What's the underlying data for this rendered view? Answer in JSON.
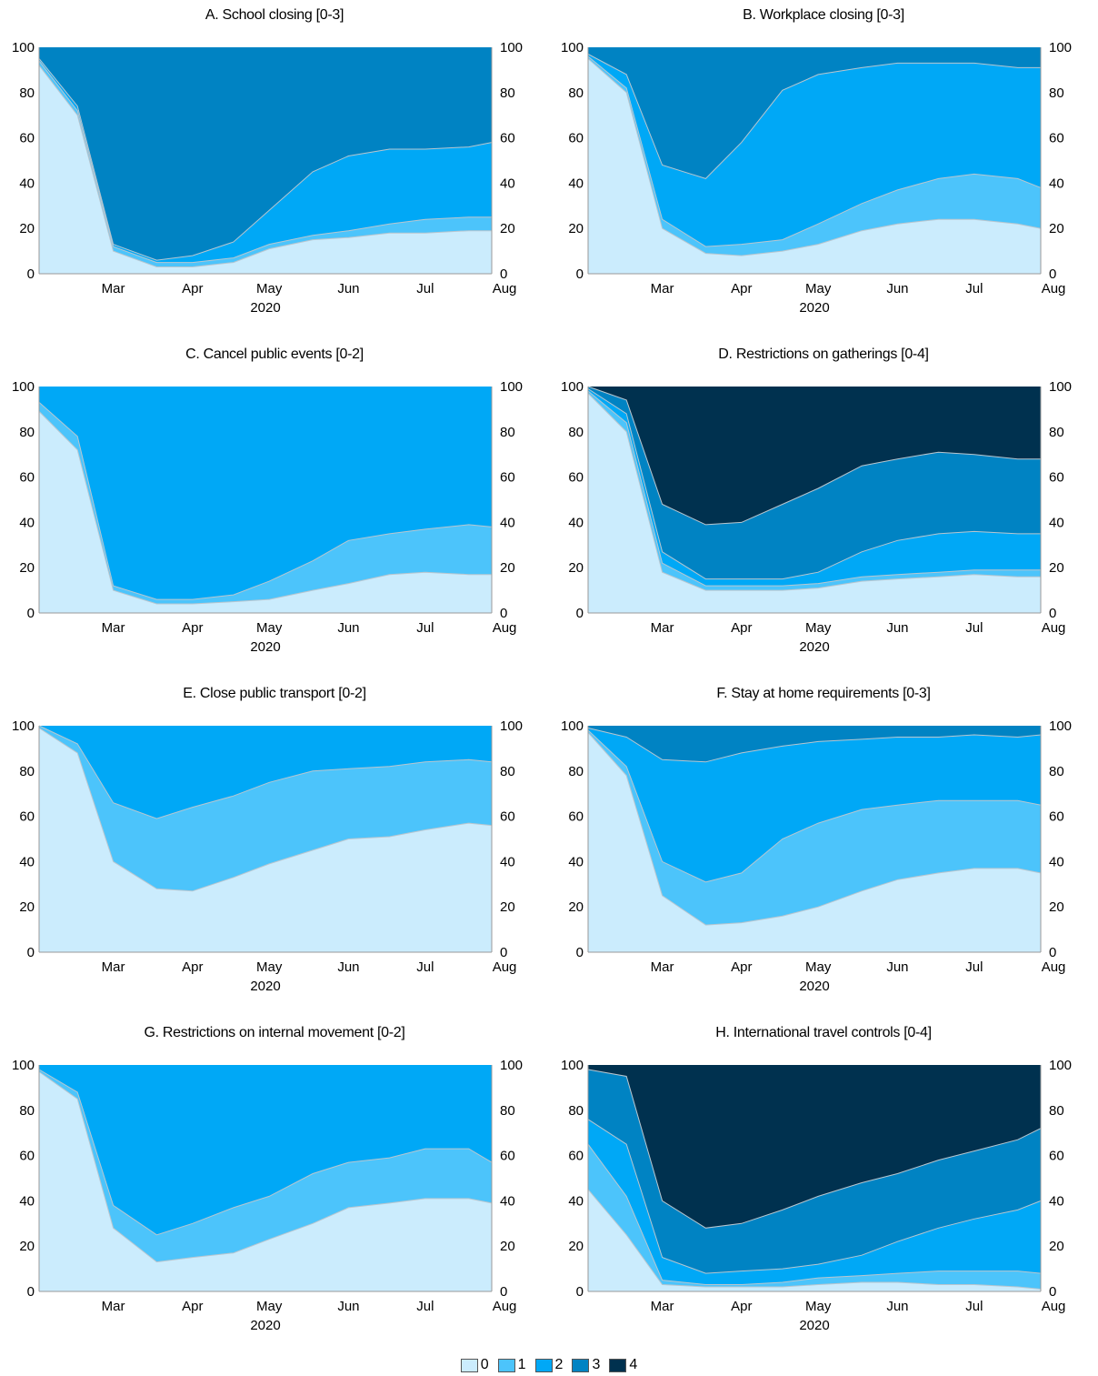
{
  "legend": {
    "items": [
      {
        "label": "0",
        "color": "#cbecfd"
      },
      {
        "label": "1",
        "color": "#4cc4fb"
      },
      {
        "label": "2",
        "color": "#00a8f6"
      },
      {
        "label": "3",
        "color": "#0083c3"
      },
      {
        "label": "4",
        "color": "#00314f"
      }
    ]
  },
  "chart_data": [
    {
      "type": "area",
      "title": "A. School closing [0-3]",
      "x": [
        "Feb 15",
        "Mar 1",
        "Mar 15",
        "Apr 1",
        "Apr 15",
        "May 1",
        "May 15",
        "Jun 1",
        "Jun 15",
        "Jul 1",
        "Jul 15",
        "Aug 1",
        "Aug 10"
      ],
      "xticks": [
        "Mar",
        "Apr",
        "May",
        "Jun",
        "Jul",
        "Aug"
      ],
      "xlabel": "2020",
      "yticks": [
        0,
        20,
        40,
        60,
        80,
        100
      ],
      "ylim": [
        0,
        100
      ],
      "series": [
        {
          "level": "0",
          "values": [
            92,
            70,
            10,
            3,
            3,
            5,
            11,
            15,
            16,
            18,
            18,
            19,
            19
          ]
        },
        {
          "level": "1",
          "values": [
            94,
            72,
            12,
            5,
            5,
            7,
            13,
            17,
            19,
            22,
            24,
            25,
            25
          ]
        },
        {
          "level": "2",
          "values": [
            95,
            74,
            13,
            6,
            8,
            14,
            28,
            45,
            52,
            55,
            55,
            56,
            58
          ]
        },
        {
          "level": "3",
          "values": [
            100,
            100,
            100,
            100,
            100,
            100,
            100,
            100,
            100,
            100,
            100,
            100,
            100
          ]
        }
      ]
    },
    {
      "type": "area",
      "title": "B. Workplace closing [0-3]",
      "x": [
        "Feb 15",
        "Mar 1",
        "Mar 15",
        "Apr 1",
        "Apr 15",
        "May 1",
        "May 15",
        "Jun 1",
        "Jun 15",
        "Jul 1",
        "Jul 15",
        "Aug 1",
        "Aug 10"
      ],
      "xticks": [
        "Mar",
        "Apr",
        "May",
        "Jun",
        "Jul",
        "Aug"
      ],
      "xlabel": "2020",
      "yticks": [
        0,
        20,
        40,
        60,
        80,
        100
      ],
      "ylim": [
        0,
        100
      ],
      "series": [
        {
          "level": "0",
          "values": [
            95,
            80,
            20,
            9,
            8,
            10,
            13,
            19,
            22,
            24,
            24,
            22,
            20
          ]
        },
        {
          "level": "1",
          "values": [
            96,
            82,
            24,
            12,
            13,
            15,
            22,
            31,
            37,
            42,
            44,
            42,
            38
          ]
        },
        {
          "level": "2",
          "values": [
            97,
            88,
            48,
            42,
            58,
            81,
            88,
            91,
            93,
            93,
            93,
            91,
            91
          ]
        },
        {
          "level": "3",
          "values": [
            100,
            100,
            100,
            100,
            100,
            100,
            100,
            100,
            100,
            100,
            100,
            100,
            100
          ]
        }
      ]
    },
    {
      "type": "area",
      "title": "C. Cancel public events [0-2]",
      "x": [
        "Feb 15",
        "Mar 1",
        "Mar 15",
        "Apr 1",
        "Apr 15",
        "May 1",
        "May 15",
        "Jun 1",
        "Jun 15",
        "Jul 1",
        "Jul 15",
        "Aug 1",
        "Aug 10"
      ],
      "xticks": [
        "Mar",
        "Apr",
        "May",
        "Jun",
        "Jul",
        "Aug"
      ],
      "xlabel": "2020",
      "yticks": [
        0,
        20,
        40,
        60,
        80,
        100
      ],
      "ylim": [
        0,
        100
      ],
      "series": [
        {
          "level": "0",
          "values": [
            89,
            72,
            10,
            4,
            4,
            5,
            6,
            10,
            13,
            17,
            18,
            17,
            17
          ]
        },
        {
          "level": "1",
          "values": [
            93,
            78,
            12,
            6,
            6,
            8,
            14,
            23,
            32,
            35,
            37,
            39,
            38
          ]
        },
        {
          "level": "2",
          "values": [
            100,
            100,
            100,
            100,
            100,
            100,
            100,
            100,
            100,
            100,
            100,
            100,
            100
          ]
        }
      ]
    },
    {
      "type": "area",
      "title": "D. Restrictions on gatherings [0-4]",
      "x": [
        "Feb 15",
        "Mar 1",
        "Mar 15",
        "Apr 1",
        "Apr 15",
        "May 1",
        "May 15",
        "Jun 1",
        "Jun 15",
        "Jul 1",
        "Jul 15",
        "Aug 1",
        "Aug 10"
      ],
      "xticks": [
        "Mar",
        "Apr",
        "May",
        "Jun",
        "Jul",
        "Aug"
      ],
      "xlabel": "2020",
      "yticks": [
        0,
        20,
        40,
        60,
        80,
        100
      ],
      "ylim": [
        0,
        100
      ],
      "series": [
        {
          "level": "0",
          "values": [
            97,
            80,
            18,
            10,
            10,
            10,
            11,
            14,
            15,
            16,
            17,
            16,
            16
          ]
        },
        {
          "level": "1",
          "values": [
            98,
            84,
            22,
            12,
            12,
            12,
            13,
            16,
            17,
            18,
            19,
            19,
            19
          ]
        },
        {
          "level": "2",
          "values": [
            99,
            88,
            27,
            15,
            15,
            15,
            18,
            27,
            32,
            35,
            36,
            35,
            35
          ]
        },
        {
          "level": "3",
          "values": [
            100,
            94,
            48,
            39,
            40,
            48,
            55,
            65,
            68,
            71,
            70,
            68,
            68
          ]
        },
        {
          "level": "4",
          "values": [
            100,
            100,
            100,
            100,
            100,
            100,
            100,
            100,
            100,
            100,
            100,
            100,
            100
          ]
        }
      ]
    },
    {
      "type": "area",
      "title": "E. Close public transport [0-2]",
      "x": [
        "Feb 15",
        "Mar 1",
        "Mar 15",
        "Apr 1",
        "Apr 15",
        "May 1",
        "May 15",
        "Jun 1",
        "Jun 15",
        "Jul 1",
        "Jul 15",
        "Aug 1",
        "Aug 10"
      ],
      "xticks": [
        "Mar",
        "Apr",
        "May",
        "Jun",
        "Jul",
        "Aug"
      ],
      "xlabel": "2020",
      "yticks": [
        0,
        20,
        40,
        60,
        80,
        100
      ],
      "ylim": [
        0,
        100
      ],
      "series": [
        {
          "level": "0",
          "values": [
            99,
            88,
            40,
            28,
            27,
            33,
            39,
            45,
            50,
            51,
            54,
            57,
            56
          ]
        },
        {
          "level": "1",
          "values": [
            100,
            92,
            66,
            59,
            64,
            69,
            75,
            80,
            81,
            82,
            84,
            85,
            84
          ]
        },
        {
          "level": "2",
          "values": [
            100,
            100,
            100,
            100,
            100,
            100,
            100,
            100,
            100,
            100,
            100,
            100,
            100
          ]
        }
      ]
    },
    {
      "type": "area",
      "title": "F. Stay at home requirements [0-3]",
      "x": [
        "Feb 15",
        "Mar 1",
        "Mar 15",
        "Apr 1",
        "Apr 15",
        "May 1",
        "May 15",
        "Jun 1",
        "Jun 15",
        "Jul 1",
        "Jul 15",
        "Aug 1",
        "Aug 10"
      ],
      "xticks": [
        "Mar",
        "Apr",
        "May",
        "Jun",
        "Jul",
        "Aug"
      ],
      "xlabel": "2020",
      "yticks": [
        0,
        20,
        40,
        60,
        80,
        100
      ],
      "ylim": [
        0,
        100
      ],
      "series": [
        {
          "level": "0",
          "values": [
            97,
            78,
            25,
            12,
            13,
            16,
            20,
            27,
            32,
            35,
            37,
            37,
            35
          ]
        },
        {
          "level": "1",
          "values": [
            98,
            82,
            40,
            31,
            35,
            50,
            57,
            63,
            65,
            67,
            67,
            67,
            65
          ]
        },
        {
          "level": "2",
          "values": [
            99,
            95,
            85,
            84,
            88,
            91,
            93,
            94,
            95,
            95,
            96,
            95,
            96
          ]
        },
        {
          "level": "3",
          "values": [
            100,
            100,
            100,
            100,
            100,
            100,
            100,
            100,
            100,
            100,
            100,
            100,
            100
          ]
        }
      ]
    },
    {
      "type": "area",
      "title": "G. Restrictions on internal movement [0-2]",
      "x": [
        "Feb 15",
        "Mar 1",
        "Mar 15",
        "Apr 1",
        "Apr 15",
        "May 1",
        "May 15",
        "Jun 1",
        "Jun 15",
        "Jul 1",
        "Jul 15",
        "Aug 1",
        "Aug 10"
      ],
      "xticks": [
        "Mar",
        "Apr",
        "May",
        "Jun",
        "Jul",
        "Aug"
      ],
      "xlabel": "2020",
      "yticks": [
        0,
        20,
        40,
        60,
        80,
        100
      ],
      "ylim": [
        0,
        100
      ],
      "series": [
        {
          "level": "0",
          "values": [
            97,
            85,
            28,
            13,
            15,
            17,
            23,
            30,
            37,
            39,
            41,
            41,
            39
          ]
        },
        {
          "level": "1",
          "values": [
            98,
            88,
            38,
            25,
            30,
            37,
            42,
            52,
            57,
            59,
            63,
            63,
            57
          ]
        },
        {
          "level": "2",
          "values": [
            100,
            100,
            100,
            100,
            100,
            100,
            100,
            100,
            100,
            100,
            100,
            100,
            100
          ]
        }
      ]
    },
    {
      "type": "area",
      "title": "H. International travel controls [0-4]",
      "x": [
        "Feb 15",
        "Mar 1",
        "Mar 15",
        "Apr 1",
        "Apr 15",
        "May 1",
        "May 15",
        "Jun 1",
        "Jun 15",
        "Jul 1",
        "Jul 15",
        "Aug 1",
        "Aug 10"
      ],
      "xticks": [
        "Mar",
        "Apr",
        "May",
        "Jun",
        "Jul",
        "Aug"
      ],
      "xlabel": "2020",
      "yticks": [
        0,
        20,
        40,
        60,
        80,
        100
      ],
      "ylim": [
        0,
        100
      ],
      "series": [
        {
          "level": "0",
          "values": [
            45,
            25,
            3,
            2,
            2,
            2,
            3,
            4,
            4,
            3,
            3,
            2,
            1
          ]
        },
        {
          "level": "1",
          "values": [
            65,
            42,
            5,
            3,
            3,
            4,
            6,
            7,
            8,
            9,
            9,
            9,
            8
          ]
        },
        {
          "level": "2",
          "values": [
            76,
            65,
            15,
            8,
            9,
            10,
            12,
            16,
            22,
            28,
            32,
            36,
            40
          ]
        },
        {
          "level": "3",
          "values": [
            98,
            95,
            40,
            28,
            30,
            36,
            42,
            48,
            52,
            58,
            62,
            67,
            72
          ]
        },
        {
          "level": "4",
          "values": [
            100,
            100,
            100,
            100,
            100,
            100,
            100,
            100,
            100,
            100,
            100,
            100,
            100
          ]
        }
      ]
    }
  ]
}
